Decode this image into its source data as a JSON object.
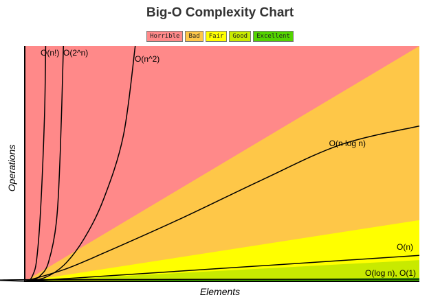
{
  "chart_data": {
    "type": "area",
    "title": "Big-O Complexity Chart",
    "xlabel": "Elements",
    "ylabel": "Operations",
    "xlim": [
      0,
      100
    ],
    "ylim": [
      0,
      100
    ],
    "grid": false,
    "legend_position": "top-center",
    "legend": [
      {
        "label": "Horrible",
        "color": "#ff8989"
      },
      {
        "label": "Bad",
        "color": "#fec748"
      },
      {
        "label": "Fair",
        "color": "#ffff00"
      },
      {
        "label": "Good",
        "color": "#c8ea00"
      },
      {
        "label": "Excellent",
        "color": "#53d400"
      }
    ],
    "regions": [
      {
        "legend": "Horrible",
        "color": "#ff8989",
        "upper": [
          [
            0,
            0
          ],
          [
            0,
            100
          ],
          [
            100,
            100
          ]
        ]
      },
      {
        "legend": "Bad",
        "color": "#fec748",
        "upper": [
          [
            0,
            0
          ],
          [
            100,
            100
          ]
        ]
      },
      {
        "legend": "Fair",
        "color": "#ffff00",
        "upper": [
          [
            0,
            0
          ],
          [
            100,
            26
          ]
        ]
      },
      {
        "legend": "Good",
        "color": "#c8ea00",
        "upper": [
          [
            0,
            0
          ],
          [
            100,
            9
          ]
        ]
      },
      {
        "legend": "Excellent",
        "color": "#53d400",
        "upper": [
          [
            0,
            0
          ],
          [
            100,
            1.5
          ]
        ]
      }
    ],
    "series": [
      {
        "name": "O(n!)",
        "x": [
          0,
          1,
          2,
          3,
          4,
          5,
          5.3
        ],
        "y": [
          0,
          0.3,
          2.5,
          9,
          30,
          70,
          100
        ]
      },
      {
        "name": "O(2^n)",
        "x": [
          0,
          2,
          4,
          6,
          8,
          9,
          9.8
        ],
        "y": [
          0,
          0.5,
          2.5,
          8,
          25,
          55,
          100
        ]
      },
      {
        "name": "O(n^2)",
        "x": [
          0,
          5,
          10,
          15,
          20,
          25,
          28
        ],
        "y": [
          0,
          1.5,
          7,
          18,
          35,
          62,
          100
        ]
      },
      {
        "name": "O(n log n)",
        "x": [
          0,
          10,
          20,
          40,
          60,
          80,
          100
        ],
        "y": [
          0,
          5,
          12,
          27,
          43,
          58,
          66
        ]
      },
      {
        "name": "O(n)",
        "x": [
          0,
          100
        ],
        "y": [
          0,
          11
        ]
      },
      {
        "name": "O(log n), O(1)",
        "x": [
          0,
          1,
          100
        ],
        "y": [
          0,
          0.7,
          0.9
        ]
      }
    ]
  }
}
